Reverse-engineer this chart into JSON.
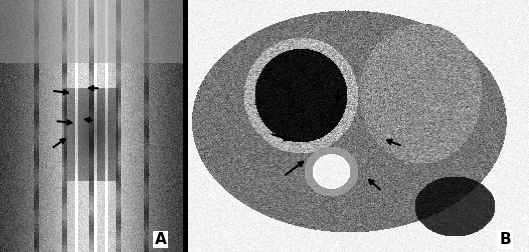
{
  "fig_width": 5.29,
  "fig_height": 2.52,
  "dpi": 100,
  "panel_A_label": "A",
  "panel_B_label": "B",
  "background_color": "#000000",
  "panel_split": 0.345,
  "arrows_A": [
    [
      0.3,
      0.52,
      0.42,
      0.51
    ],
    [
      0.52,
      0.52,
      0.44,
      0.53
    ],
    [
      0.28,
      0.64,
      0.4,
      0.63
    ],
    [
      0.55,
      0.65,
      0.46,
      0.65
    ],
    [
      0.28,
      0.41,
      0.38,
      0.46
    ]
  ],
  "arrows_B": [
    [
      0.28,
      0.3,
      0.35,
      0.37
    ],
    [
      0.57,
      0.24,
      0.52,
      0.3
    ],
    [
      0.24,
      0.47,
      0.31,
      0.44
    ],
    [
      0.63,
      0.42,
      0.57,
      0.45
    ],
    [
      0.44,
      0.65,
      0.44,
      0.58
    ]
  ]
}
